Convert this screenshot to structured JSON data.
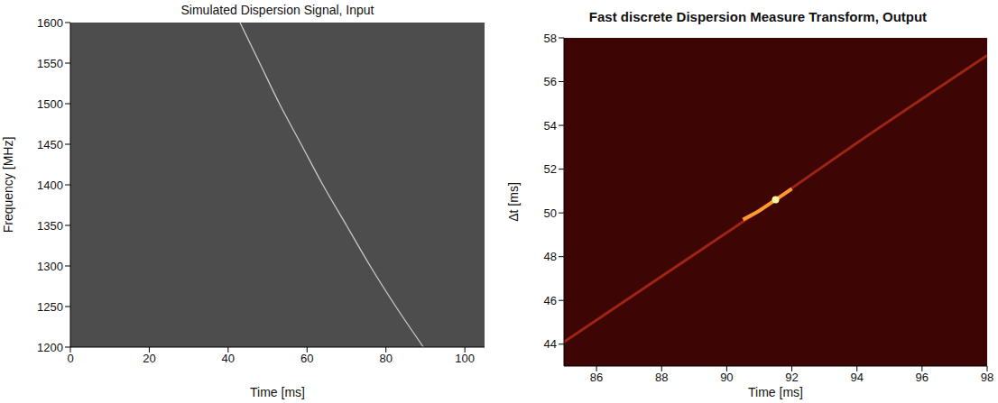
{
  "chart_data": [
    {
      "type": "line",
      "title": "Simulated Dispersion Signal, Input",
      "x_label": "Time [ms]",
      "y_label": "Frequency [MHz]",
      "x": [
        43,
        48,
        53,
        58.5,
        64,
        70,
        76,
        82.5,
        89.5
      ],
      "values": [
        1600,
        1550,
        1500,
        1450,
        1400,
        1350,
        1300,
        1250,
        1200
      ],
      "color": "#c8c8c8",
      "xlim": [
        0,
        105
      ],
      "xticks": [
        0,
        20,
        40,
        60,
        80,
        100
      ],
      "ylim": [
        1200,
        1600
      ],
      "yticks": [
        1200,
        1250,
        1300,
        1350,
        1400,
        1450,
        1500,
        1550,
        1600
      ],
      "grid": false
    },
    {
      "type": "line",
      "title": "Fast discrete Dispersion Measure Transform, Output",
      "x_label": "Time [ms]",
      "y_label": "Δt [ms]",
      "series": [
        {
          "type": "line",
          "color": "#9e2414",
          "x": [
            85,
            88,
            91,
            94,
            98
          ],
          "values": [
            44.1,
            47.1,
            50.1,
            53.2,
            57.2
          ]
        },
        {
          "type": "line",
          "color": "#ff9a2e",
          "x": [
            90.5,
            91,
            91.5,
            92
          ],
          "values": [
            49.7,
            50.1,
            50.6,
            51.1
          ]
        },
        {
          "type": "scatter",
          "color": "#fff3a0",
          "x": [
            91.5
          ],
          "values": [
            50.6
          ]
        }
      ],
      "xlim": [
        85,
        98
      ],
      "xticks": [
        86,
        88,
        90,
        92,
        94,
        96,
        98
      ],
      "ylim": [
        43,
        58
      ],
      "yticks": [
        44,
        46,
        48,
        50,
        52,
        54,
        56,
        58
      ],
      "grid": false
    }
  ]
}
